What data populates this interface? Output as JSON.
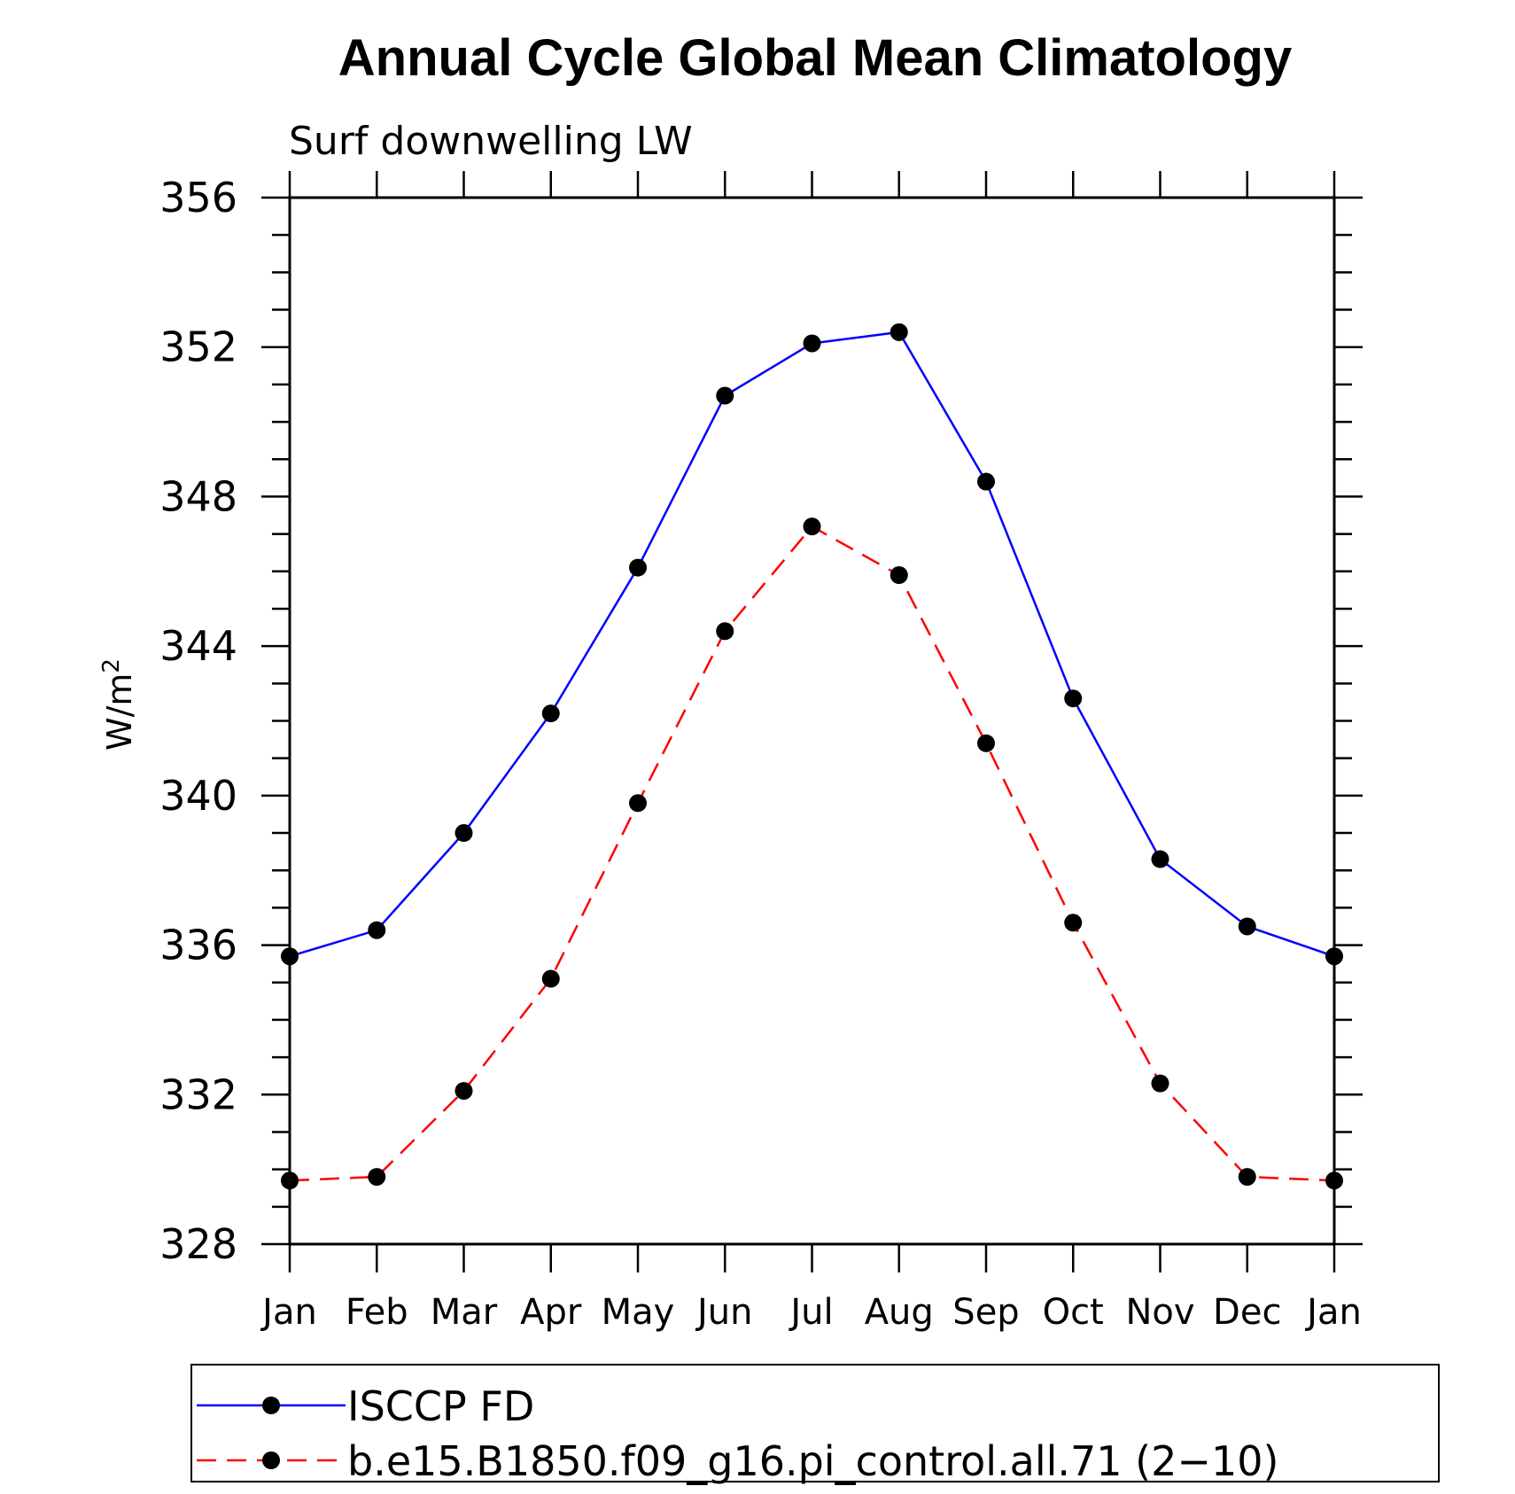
{
  "chart_data": {
    "type": "line",
    "title": "Annual Cycle Global Mean Climatology",
    "subtitle": "Surf downwelling LW",
    "ylabel": "W/m",
    "ylabel_superscript": "2",
    "ylim": [
      328,
      356
    ],
    "yticks": [
      "328",
      "332",
      "336",
      "340",
      "344",
      "348",
      "352",
      "356"
    ],
    "categories": [
      "Jan",
      "Feb",
      "Mar",
      "Apr",
      "May",
      "Jun",
      "Jul",
      "Aug",
      "Sep",
      "Oct",
      "Nov",
      "Dec",
      "Jan"
    ],
    "series": [
      {
        "name": "ISCCP FD",
        "color": "#0000ff",
        "dash": "solid",
        "values": [
          335.7,
          336.4,
          339.0,
          342.2,
          346.1,
          350.7,
          352.1,
          352.4,
          348.4,
          342.6,
          338.3,
          336.5,
          335.7
        ]
      },
      {
        "name": "b.e15.B1850.f09_g16.pi_control.all.71 (2−10)",
        "color": "#ff0000",
        "dash": "dashed",
        "values": [
          329.7,
          329.8,
          332.1,
          335.1,
          339.8,
          344.4,
          347.2,
          345.9,
          341.4,
          336.6,
          332.3,
          329.8,
          329.7
        ]
      }
    ],
    "grid": false,
    "legend": "bottom"
  }
}
